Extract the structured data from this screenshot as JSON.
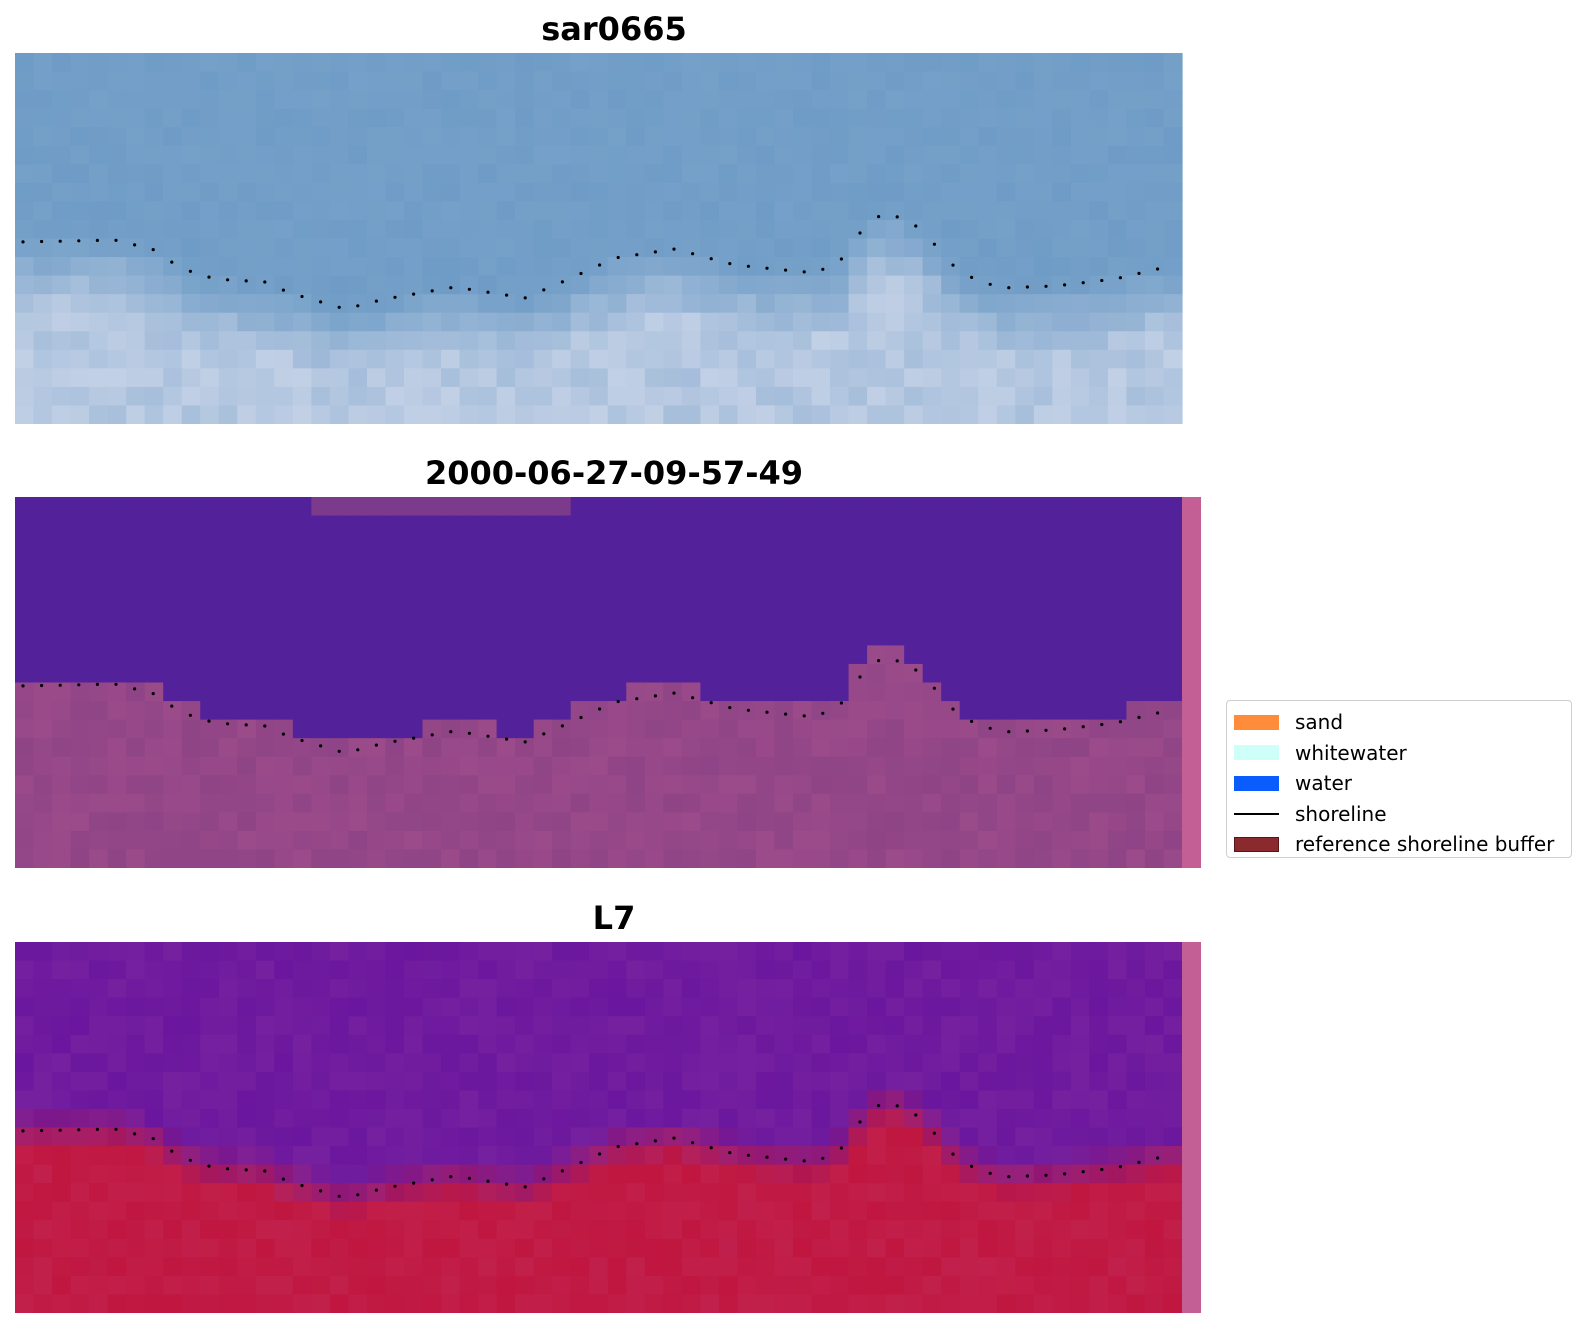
{
  "panels": [
    {
      "title": "sar0665",
      "style": "rgb"
    },
    {
      "title": "2000-06-27-09-57-49",
      "style": "classified"
    },
    {
      "title": "L7",
      "style": "index"
    }
  ],
  "legend": {
    "items": [
      {
        "label": "sand",
        "color": "#ff8c3a",
        "kind": "patch"
      },
      {
        "label": "whitewater",
        "color": "#cffff9",
        "kind": "patch"
      },
      {
        "label": "water",
        "color": "#0a5cff",
        "kind": "patch"
      },
      {
        "label": "shoreline",
        "color": "#000000",
        "kind": "line"
      },
      {
        "label": "reference shoreline buffer",
        "color": "#8b2a2e",
        "kind": "patch"
      }
    ]
  },
  "colors": {
    "rgb_water": "#6f9cc6",
    "rgb_sand": "#c9d4e8",
    "classified_water": "#53229a",
    "classified_land": "#8e4486",
    "index_water": "#6a169e",
    "index_land": "#c0163f",
    "buffer_strip": "#c45f95",
    "shoreline_dots": "#000000"
  }
}
